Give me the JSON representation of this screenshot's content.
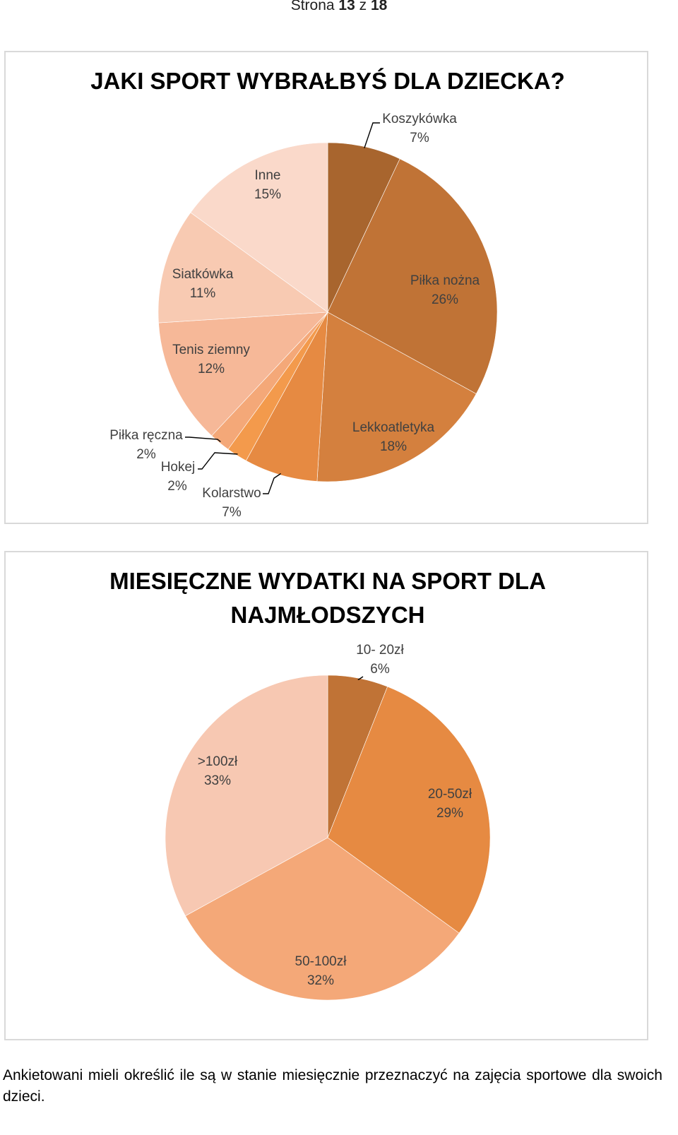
{
  "page": {
    "header_prefix": "Strona",
    "current": "13",
    "separator": "z",
    "total": "18"
  },
  "chart_data": [
    {
      "type": "pie",
      "title": "JAKI SPORT WYBRAŁBYŚ DLA DZIECKA?",
      "slices": [
        {
          "label": "Koszykówka",
          "value": 7,
          "display": "7%",
          "color": "#a8652e"
        },
        {
          "label": "Piłka nożna",
          "value": 26,
          "display": "26%",
          "color": "#c07336"
        },
        {
          "label": "Lekkoatletyka",
          "value": 18,
          "display": "18%",
          "color": "#d4803e"
        },
        {
          "label": "Kolarstwo",
          "value": 7,
          "display": "7%",
          "color": "#e68a42"
        },
        {
          "label": "Hokej",
          "value": 2,
          "display": "2%",
          "color": "#f39a4c"
        },
        {
          "label": "Piłka ręczna",
          "value": 2,
          "display": "2%",
          "color": "#f4a878"
        },
        {
          "label": "Tenis ziemny",
          "value": 12,
          "display": "12%",
          "color": "#f6b898"
        },
        {
          "label": "Siatkówka",
          "value": 11,
          "display": "11%",
          "color": "#f8cab2"
        },
        {
          "label": "Inne",
          "value": 15,
          "display": "15%",
          "color": "#fad9ca"
        }
      ]
    },
    {
      "type": "pie",
      "title": "MIESIĘCZNE WYDATKI NA SPORT DLA NAJMŁODSZYCH",
      "slices": [
        {
          "label": "10- 20zł",
          "value": 6,
          "display": "6%",
          "color": "#c07336"
        },
        {
          "label": "20-50zł",
          "value": 29,
          "display": "29%",
          "color": "#e68a42"
        },
        {
          "label": "50-100zł",
          "value": 32,
          "display": "32%",
          "color": "#f4a878"
        },
        {
          "label": ">100zł",
          "value": 33,
          "display": "33%",
          "color": "#f7c8b2"
        }
      ]
    }
  ],
  "body_text": "Ankietowani mieli określić ile są w stanie miesięcznie przeznaczyć na zajęcia sportowe dla swoich dzieci."
}
